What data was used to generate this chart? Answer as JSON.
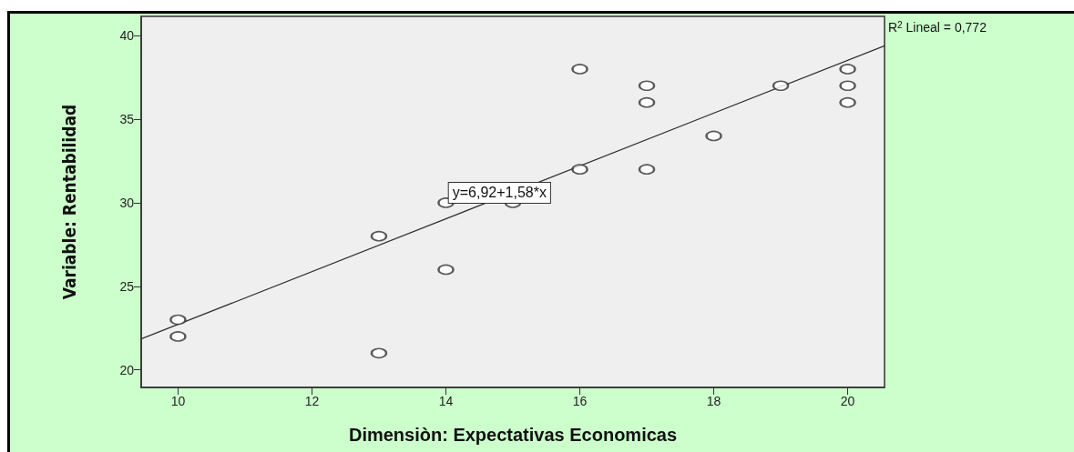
{
  "chart_data": {
    "type": "scatter",
    "xlabel": "Dimensiòn: Expectativas Economicas",
    "ylabel": "Variable: Rentabilidad",
    "xlim": [
      9.45,
      20.55
    ],
    "ylim": [
      18.95,
      41.15
    ],
    "xticks": [
      10,
      12,
      14,
      16,
      18,
      20
    ],
    "yticks": [
      20,
      25,
      30,
      35,
      40
    ],
    "grid": false,
    "marker": "circle",
    "series": [
      {
        "color": "#333333",
        "x": [
          10,
          10,
          13,
          13,
          14,
          14,
          15,
          16,
          16,
          17,
          17,
          17,
          18,
          19,
          20,
          20,
          20
        ],
        "values": [
          23,
          22,
          28,
          21,
          30,
          26,
          30,
          38,
          32,
          37,
          36,
          32,
          34,
          37,
          38,
          37,
          36
        ]
      },
      {
        "type": "line",
        "color": "#333333",
        "marker": "none",
        "line_style": "solid",
        "x": [
          9.45,
          20.55
        ],
        "values": [
          21.85,
          39.39
        ]
      }
    ],
    "annotations": [
      {
        "text": "y=6,92+1,58*x",
        "x": 14.8,
        "y": 30.6
      },
      "R$^{2}$ Lineal = 0,772"
    ]
  }
}
